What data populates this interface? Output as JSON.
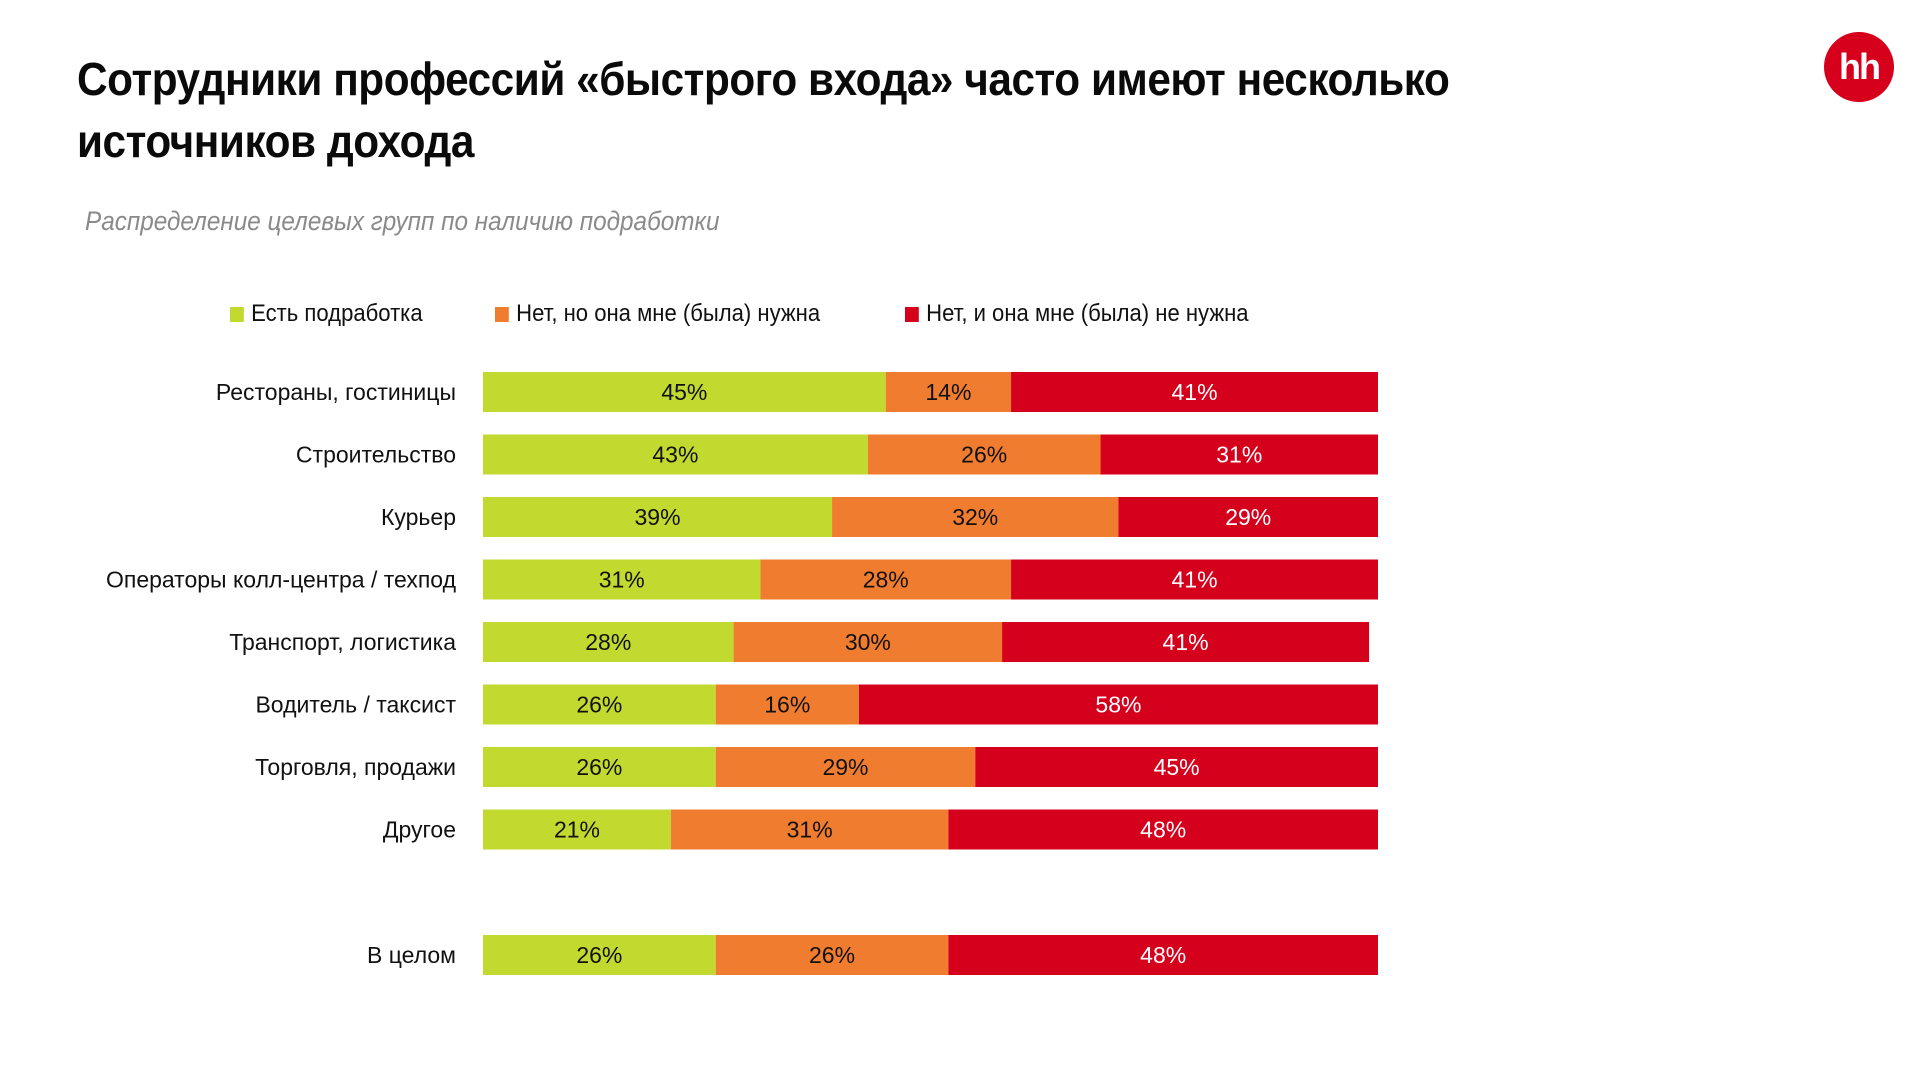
{
  "header": {
    "title_line1": "Сотрудники профессий «быстрого входа» часто имеют несколько",
    "title_line2": "источников дохода",
    "subtitle": "Распределение целевых групп по наличию подработки",
    "logo_text": "hh"
  },
  "colors": {
    "green": "#c2d92f",
    "orange": "#f07c30",
    "red": "#d5001c",
    "brand": "#d6001c"
  },
  "chart_data": {
    "type": "bar",
    "orientation": "horizontal",
    "stacked": true,
    "normalized": true,
    "title": "Распределение целевых групп по наличию подработки",
    "xlabel": "",
    "ylabel": "",
    "xlim": [
      0,
      100
    ],
    "grid": false,
    "legend_position": "top",
    "categories": [
      "Рестораны, гостиницы",
      "Строительство",
      "Курьер",
      "Операторы колл-центра / техпод",
      "Транспорт, логистика",
      "Водитель / таксист",
      "Торговля, продажи",
      "Другое",
      "В целом"
    ],
    "series": [
      {
        "name": "Есть подработка",
        "color": "#c2d92f",
        "label_color": "#111111",
        "values": [
          45,
          43,
          39,
          31,
          28,
          26,
          26,
          21,
          26
        ]
      },
      {
        "name": "Нет, но она мне (была) нужна",
        "color": "#f07c30",
        "label_color": "#111111",
        "values": [
          14,
          26,
          32,
          28,
          30,
          16,
          29,
          31,
          26
        ]
      },
      {
        "name": "Нет, и она мне (была) не нужна",
        "color": "#d5001c",
        "label_color": "#ffffff",
        "values": [
          41,
          31,
          29,
          41,
          41,
          58,
          45,
          48,
          48
        ]
      }
    ],
    "value_suffix": "%"
  }
}
